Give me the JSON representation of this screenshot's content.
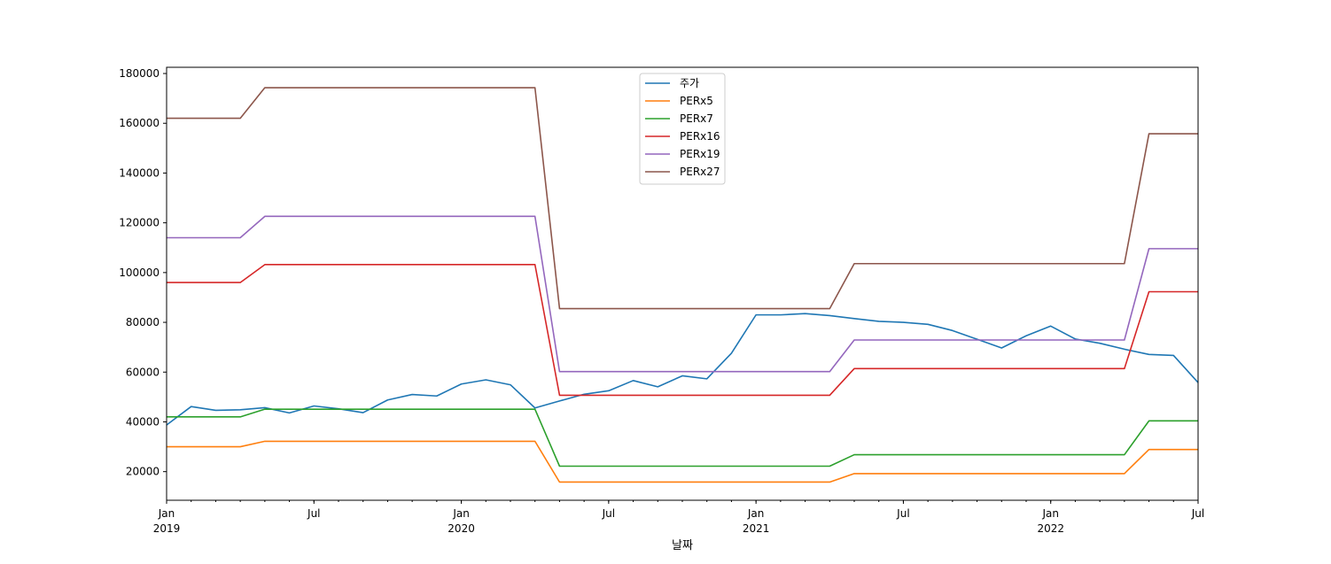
{
  "chart_data": {
    "type": "line",
    "xlabel": "날짜",
    "ylabel": "",
    "xlim": [
      "2019-01",
      "2022-07"
    ],
    "ylim": [
      8500,
      182500
    ],
    "yticks": [
      20000,
      40000,
      60000,
      80000,
      100000,
      120000,
      140000,
      160000,
      180000
    ],
    "xticks": [
      {
        "month": "2019-01",
        "label": "Jan",
        "sublabel": "2019"
      },
      {
        "month": "2019-07",
        "label": "Jul",
        "sublabel": ""
      },
      {
        "month": "2020-01",
        "label": "Jan",
        "sublabel": "2020"
      },
      {
        "month": "2020-07",
        "label": "Jul",
        "sublabel": ""
      },
      {
        "month": "2021-01",
        "label": "Jan",
        "sublabel": "2021"
      },
      {
        "month": "2021-07",
        "label": "Jul",
        "sublabel": ""
      },
      {
        "month": "2022-01",
        "label": "Jan",
        "sublabel": "2022"
      },
      {
        "month": "2022-07",
        "label": "Jul",
        "sublabel": ""
      }
    ],
    "x": [
      "2019-01",
      "2019-02",
      "2019-03",
      "2019-04",
      "2019-05",
      "2019-06",
      "2019-07",
      "2019-08",
      "2019-09",
      "2019-10",
      "2019-11",
      "2019-12",
      "2020-01",
      "2020-02",
      "2020-03",
      "2020-04",
      "2020-05",
      "2020-06",
      "2020-07",
      "2020-08",
      "2020-09",
      "2020-10",
      "2020-11",
      "2020-12",
      "2021-01",
      "2021-02",
      "2021-03",
      "2021-04",
      "2021-05",
      "2021-06",
      "2021-07",
      "2021-08",
      "2021-09",
      "2021-10",
      "2021-11",
      "2021-12",
      "2022-01",
      "2022-02",
      "2022-03",
      "2022-04",
      "2022-05",
      "2022-06",
      "2022-07"
    ],
    "legend_position": "upper-center",
    "grid": false,
    "series": [
      {
        "name": "주가",
        "color": "#1f77b4",
        "values": [
          38750,
          46150,
          44650,
          44850,
          45700,
          43600,
          46400,
          45250,
          43700,
          48800,
          51000,
          50400,
          55200,
          56900,
          54900,
          45600,
          48400,
          51100,
          52500,
          56600,
          54100,
          58500,
          57300,
          67600,
          83000,
          83000,
          83500,
          82700,
          81500,
          80400,
          80000,
          79200,
          76700,
          73200,
          69700,
          74600,
          78500,
          73300,
          71600,
          69200,
          67100,
          66700,
          55800
        ]
      },
      {
        "name": "PERx5",
        "color": "#ff7f0e",
        "values": [
          30000,
          30000,
          30000,
          30000,
          32200,
          32200,
          32200,
          32200,
          32200,
          32200,
          32200,
          32200,
          32200,
          32200,
          32200,
          32200,
          15800,
          15800,
          15800,
          15800,
          15800,
          15800,
          15800,
          15800,
          15800,
          15800,
          15800,
          15800,
          19200,
          19200,
          19200,
          19200,
          19200,
          19200,
          19200,
          19200,
          19200,
          19200,
          19200,
          19200,
          28900,
          28900,
          28900
        ]
      },
      {
        "name": "PERx7",
        "color": "#2ca02c",
        "values": [
          42000,
          42000,
          42000,
          42000,
          45100,
          45100,
          45100,
          45100,
          45100,
          45100,
          45100,
          45100,
          45100,
          45100,
          45100,
          45100,
          22200,
          22200,
          22200,
          22200,
          22200,
          22200,
          22200,
          22200,
          22200,
          22200,
          22200,
          22200,
          26800,
          26800,
          26800,
          26800,
          26800,
          26800,
          26800,
          26800,
          26800,
          26800,
          26800,
          26800,
          40400,
          40400,
          40400
        ]
      },
      {
        "name": "PERx16",
        "color": "#d62728",
        "values": [
          96000,
          96000,
          96000,
          96000,
          103200,
          103200,
          103200,
          103200,
          103200,
          103200,
          103200,
          103200,
          103200,
          103200,
          103200,
          103200,
          50700,
          50700,
          50700,
          50700,
          50700,
          50700,
          50700,
          50700,
          50700,
          50700,
          50700,
          50700,
          61400,
          61400,
          61400,
          61400,
          61400,
          61400,
          61400,
          61400,
          61400,
          61400,
          61400,
          61400,
          92300,
          92300,
          92300
        ]
      },
      {
        "name": "PERx19",
        "color": "#9467bd",
        "values": [
          114000,
          114000,
          114000,
          114000,
          122600,
          122600,
          122600,
          122600,
          122600,
          122600,
          122600,
          122600,
          122600,
          122600,
          122600,
          122600,
          60200,
          60200,
          60200,
          60200,
          60200,
          60200,
          60200,
          60200,
          60200,
          60200,
          60200,
          60200,
          72900,
          72900,
          72900,
          72900,
          72900,
          72900,
          72900,
          72900,
          72900,
          72900,
          72900,
          72900,
          109600,
          109600,
          109600
        ]
      },
      {
        "name": "PERx27",
        "color": "#8c564b",
        "values": [
          162000,
          162000,
          162000,
          162000,
          174300,
          174300,
          174300,
          174300,
          174300,
          174300,
          174300,
          174300,
          174300,
          174300,
          174300,
          174300,
          85500,
          85500,
          85500,
          85500,
          85500,
          85500,
          85500,
          85500,
          85500,
          85500,
          85500,
          85500,
          103600,
          103600,
          103600,
          103600,
          103600,
          103600,
          103600,
          103600,
          103600,
          103600,
          103600,
          103600,
          155800,
          155800,
          155800
        ]
      }
    ]
  }
}
